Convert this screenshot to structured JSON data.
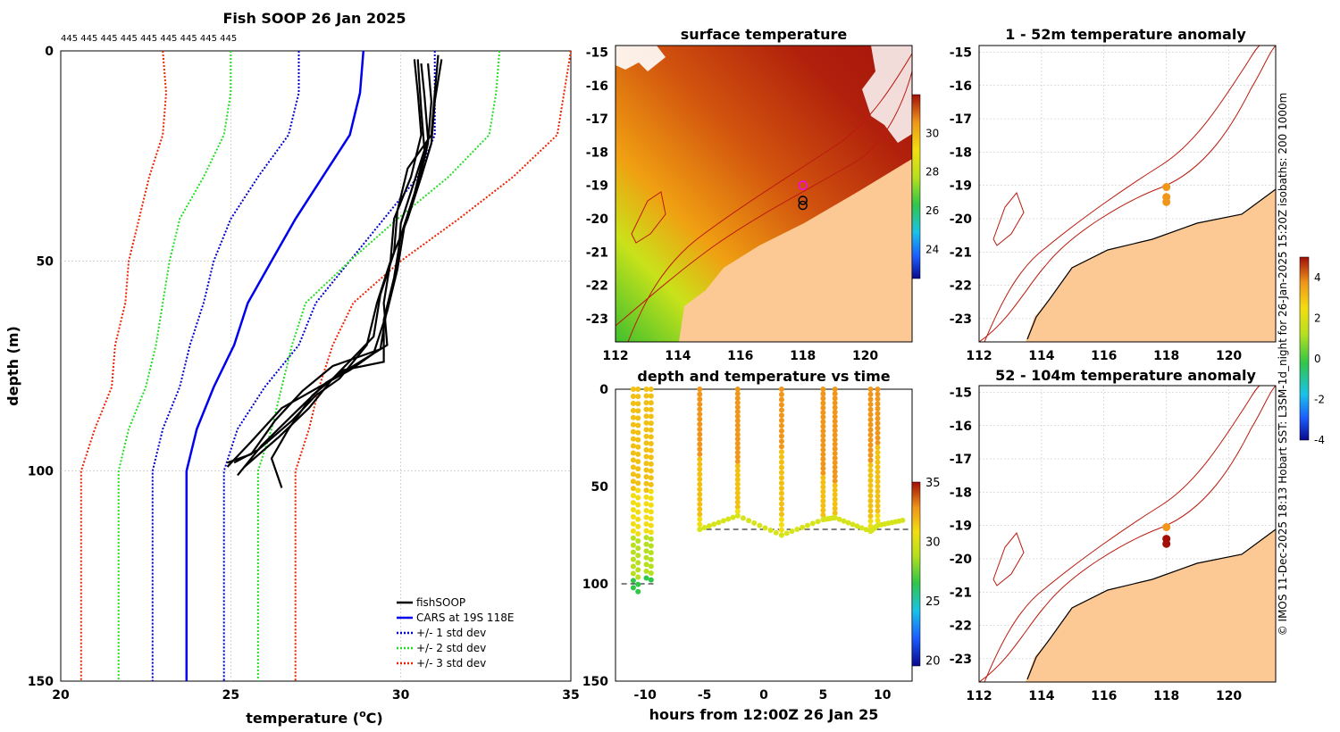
{
  "credit": "© IMOS 11-Dec-2025 18:13 Hobart SST: L3SM-1d_night for 26-Jan-2025 15:20Z isobaths: 200  1000m",
  "colors": {
    "fish": "#000000",
    "cars": "#0000ee",
    "std1": "#0000cc",
    "std2": "#22dd22",
    "std3": "#ee2200",
    "land": "#fcc995",
    "isobath": "#bb1a0e",
    "grid": "#bdbdbd"
  },
  "chart_data": [
    {
      "id": "profile",
      "type": "line",
      "title": "Fish SOOP 26 Jan 2025",
      "top_label": "445 445 445 445 445 445 445 445 445",
      "xlabel": "temperature (°C)",
      "xlabel_text": "temperature (",
      "xlabel_sup": "o",
      "xlabel_unit": "C)",
      "ylabel": "depth (m)",
      "xlim": [
        20,
        35
      ],
      "ylim": [
        150,
        0
      ],
      "xticks": [
        20,
        25,
        30,
        35
      ],
      "yticks": [
        0,
        50,
        100,
        150
      ],
      "legend": [
        "fishSOOP",
        "CARS at 19S 118E",
        "+/- 1 std dev",
        "+/- 2 std dev",
        "+/- 3 std dev"
      ],
      "series": [
        {
          "name": "CARS at 19S 118E",
          "style": "cars",
          "points": [
            [
              28.9,
              0
            ],
            [
              28.8,
              10
            ],
            [
              28.5,
              20
            ],
            [
              27.7,
              30
            ],
            [
              26.9,
              40
            ],
            [
              26.2,
              50
            ],
            [
              25.5,
              60
            ],
            [
              25.1,
              70
            ],
            [
              24.5,
              80
            ],
            [
              24.0,
              90
            ],
            [
              23.7,
              100
            ],
            [
              23.7,
              150
            ]
          ]
        },
        {
          "name": "-1 std",
          "style": "std1",
          "points": [
            [
              27.0,
              0
            ],
            [
              27.0,
              10
            ],
            [
              26.7,
              20
            ],
            [
              25.8,
              30
            ],
            [
              25.0,
              40
            ],
            [
              24.5,
              50
            ],
            [
              24.2,
              60
            ],
            [
              23.8,
              70
            ],
            [
              23.5,
              80
            ],
            [
              23.0,
              90
            ],
            [
              22.7,
              100
            ],
            [
              22.7,
              150
            ]
          ]
        },
        {
          "name": "+1 std",
          "style": "std1",
          "points": [
            [
              31.0,
              0
            ],
            [
              31.0,
              10
            ],
            [
              31.0,
              20
            ],
            [
              30.5,
              30
            ],
            [
              29.5,
              40
            ],
            [
              28.5,
              50
            ],
            [
              27.5,
              60
            ],
            [
              27.0,
              70
            ],
            [
              26.0,
              80
            ],
            [
              25.2,
              90
            ],
            [
              24.8,
              100
            ],
            [
              24.8,
              150
            ]
          ]
        },
        {
          "name": "-2 std",
          "style": "std2",
          "points": [
            [
              25.0,
              0
            ],
            [
              25.0,
              10
            ],
            [
              24.8,
              20
            ],
            [
              24.2,
              30
            ],
            [
              23.5,
              40
            ],
            [
              23.2,
              50
            ],
            [
              23.0,
              60
            ],
            [
              22.8,
              70
            ],
            [
              22.5,
              80
            ],
            [
              22.0,
              90
            ],
            [
              21.7,
              100
            ],
            [
              21.7,
              150
            ]
          ]
        },
        {
          "name": "+2 std",
          "style": "std2",
          "points": [
            [
              32.9,
              0
            ],
            [
              32.8,
              10
            ],
            [
              32.6,
              20
            ],
            [
              31.4,
              30
            ],
            [
              29.9,
              40
            ],
            [
              28.5,
              50
            ],
            [
              27.2,
              60
            ],
            [
              26.8,
              70
            ],
            [
              26.5,
              80
            ],
            [
              26.2,
              90
            ],
            [
              25.8,
              100
            ],
            [
              25.8,
              150
            ]
          ]
        },
        {
          "name": "-3 std",
          "style": "std3",
          "points": [
            [
              23.0,
              0
            ],
            [
              23.1,
              10
            ],
            [
              23.0,
              20
            ],
            [
              22.6,
              30
            ],
            [
              22.3,
              40
            ],
            [
              22.0,
              50
            ],
            [
              21.9,
              60
            ],
            [
              21.6,
              70
            ],
            [
              21.5,
              80
            ],
            [
              21.0,
              90
            ],
            [
              20.6,
              100
            ],
            [
              20.6,
              150
            ]
          ]
        },
        {
          "name": "+3 std",
          "style": "std3",
          "points": [
            [
              35.0,
              0
            ],
            [
              34.8,
              10
            ],
            [
              34.6,
              20
            ],
            [
              33.3,
              30
            ],
            [
              31.7,
              40
            ],
            [
              30.0,
              50
            ],
            [
              28.6,
              60
            ],
            [
              28.0,
              70
            ],
            [
              27.6,
              80
            ],
            [
              27.3,
              90
            ],
            [
              26.9,
              100
            ],
            [
              26.9,
              150
            ]
          ]
        },
        {
          "name": "fishSOOP cast 1",
          "style": "fish",
          "points": [
            [
              30.4,
              2
            ],
            [
              30.5,
              10
            ],
            [
              30.6,
              20
            ],
            [
              30.3,
              30
            ],
            [
              29.8,
              40
            ],
            [
              29.7,
              50
            ],
            [
              29.3,
              60
            ],
            [
              29.0,
              70
            ],
            [
              28.2,
              78
            ],
            [
              27.5,
              82
            ],
            [
              26.8,
              88
            ],
            [
              25.8,
              95
            ],
            [
              25.1,
              98
            ]
          ]
        },
        {
          "name": "fishSOOP cast 2",
          "style": "fish",
          "points": [
            [
              30.8,
              3
            ],
            [
              30.9,
              12
            ],
            [
              30.8,
              22
            ],
            [
              30.5,
              32
            ],
            [
              30.1,
              42
            ],
            [
              29.9,
              52
            ],
            [
              29.6,
              62
            ],
            [
              29.2,
              72
            ],
            [
              28.5,
              76
            ],
            [
              27.6,
              80
            ],
            [
              26.5,
              85
            ],
            [
              25.6,
              93
            ],
            [
              24.9,
              99
            ]
          ]
        },
        {
          "name": "fishSOOP cast 3",
          "style": "fish",
          "points": [
            [
              31.1,
              1
            ],
            [
              31.0,
              10
            ],
            [
              30.9,
              20
            ],
            [
              30.2,
              28
            ],
            [
              29.9,
              38
            ],
            [
              29.8,
              48
            ],
            [
              29.4,
              58
            ],
            [
              29.2,
              68
            ],
            [
              28.6,
              73
            ],
            [
              28.0,
              78
            ],
            [
              27.3,
              85
            ],
            [
              26.4,
              92
            ],
            [
              25.4,
              99
            ]
          ]
        },
        {
          "name": "fishSOOP cast 4",
          "style": "fish",
          "points": [
            [
              30.5,
              2
            ],
            [
              30.6,
              14
            ],
            [
              30.7,
              24
            ],
            [
              30.4,
              34
            ],
            [
              30.0,
              44
            ],
            [
              29.8,
              54
            ],
            [
              29.5,
              64
            ],
            [
              29.5,
              74
            ],
            [
              28.3,
              76
            ],
            [
              27.4,
              82
            ],
            [
              26.7,
              90
            ],
            [
              26.2,
              97
            ],
            [
              26.5,
              104
            ]
          ]
        },
        {
          "name": "fishSOOP cast 5",
          "style": "fish",
          "points": [
            [
              31.2,
              2
            ],
            [
              31.0,
              12
            ],
            [
              30.9,
              22
            ],
            [
              30.6,
              30
            ],
            [
              30.2,
              40
            ],
            [
              29.7,
              50
            ],
            [
              29.5,
              60
            ],
            [
              29.6,
              70
            ],
            [
              28.8,
              74
            ],
            [
              27.8,
              79
            ],
            [
              26.9,
              86
            ],
            [
              25.9,
              94
            ],
            [
              25.2,
              101
            ]
          ]
        },
        {
          "name": "fishSOOP cast 6",
          "style": "fish",
          "points": [
            [
              30.6,
              3
            ],
            [
              30.7,
              11
            ],
            [
              30.8,
              21
            ],
            [
              30.4,
              31
            ],
            [
              30.0,
              41
            ],
            [
              29.9,
              51
            ],
            [
              29.6,
              61
            ],
            [
              29.4,
              71
            ],
            [
              28.0,
              75
            ],
            [
              27.1,
              81
            ],
            [
              26.3,
              88
            ],
            [
              25.6,
              96
            ],
            [
              24.9,
              98
            ]
          ]
        }
      ]
    },
    {
      "id": "sst",
      "type": "heatmap",
      "title": "surface temperature",
      "xlim": [
        112,
        121.5
      ],
      "ylim": [
        -23.7,
        -14.8
      ],
      "xticks": [
        112,
        114,
        116,
        118,
        120
      ],
      "yticks": [
        -15,
        -16,
        -17,
        -18,
        -19,
        -20,
        -21,
        -22,
        -23
      ],
      "colorbar": {
        "range": [
          22.5,
          32
        ],
        "ticks": [
          24,
          26,
          28,
          30
        ]
      },
      "markers": [
        {
          "lon": 118.0,
          "lat": -19.0,
          "color": "#ff00ff"
        },
        {
          "lon": 118.0,
          "lat": -19.45,
          "color": "#000000"
        },
        {
          "lon": 118.0,
          "lat": -19.6,
          "color": "#000000"
        }
      ]
    },
    {
      "id": "anom1",
      "type": "scatter",
      "title": "1 - 52m temperature anomaly",
      "xlim": [
        112,
        121.5
      ],
      "ylim": [
        -23.7,
        -14.8
      ],
      "xticks": [
        112,
        114,
        116,
        118,
        120
      ],
      "yticks": [
        -15,
        -16,
        -17,
        -18,
        -19,
        -20,
        -21,
        -22,
        -23
      ],
      "points": [
        {
          "lon": 118.0,
          "lat": -19.05,
          "anom": 2.3
        },
        {
          "lon": 118.0,
          "lat": -19.35,
          "anom": 2.4
        },
        {
          "lon": 118.0,
          "lat": -19.5,
          "anom": 2.5
        }
      ]
    },
    {
      "id": "anom2",
      "type": "scatter",
      "title": "52 - 104m temperature anomaly",
      "xlim": [
        112,
        121.5
      ],
      "ylim": [
        -23.7,
        -14.8
      ],
      "xticks": [
        112,
        114,
        116,
        118,
        120
      ],
      "yticks": [
        -15,
        -16,
        -17,
        -18,
        -19,
        -20,
        -21,
        -22,
        -23
      ],
      "colorbar": {
        "range": [
          -4,
          5
        ],
        "ticks": [
          4,
          2,
          0,
          -2,
          -4
        ]
      },
      "points": [
        {
          "lon": 118.0,
          "lat": -19.05,
          "anom": 2.4
        },
        {
          "lon": 118.0,
          "lat": -19.4,
          "anom": 4.5
        },
        {
          "lon": 118.0,
          "lat": -19.55,
          "anom": 4.6
        }
      ]
    },
    {
      "id": "timeseries",
      "type": "scatter",
      "title": "depth and temperature vs time",
      "xlabel": "hours from 12:00Z 26 Jan 25",
      "xlim": [
        -12.5,
        12.5
      ],
      "ylim": [
        150,
        0
      ],
      "xticks": [
        -10,
        -5,
        0,
        5,
        10
      ],
      "yticks": [
        0,
        50,
        100,
        150
      ],
      "colorbar": {
        "range": [
          19.5,
          35
        ],
        "ticks": [
          20,
          25,
          30,
          35
        ]
      },
      "bottom_depth": 72,
      "casts": [
        {
          "t": -11.0,
          "depth": 102,
          "tsurf": 30.8,
          "tbot": 25.2
        },
        {
          "t": -10.6,
          "depth": 104,
          "tsurf": 30.6,
          "tbot": 25.0
        },
        {
          "t": -9.9,
          "depth": 97,
          "tsurf": 30.9,
          "tbot": 25.8
        },
        {
          "t": -9.5,
          "depth": 98,
          "tsurf": 30.7,
          "tbot": 26.0
        },
        {
          "t": -5.4,
          "depth": 72,
          "tsurf": 31.2,
          "tbot": 29.6
        },
        {
          "t": -2.2,
          "depth": 65,
          "tsurf": 31.3,
          "tbot": 29.8
        },
        {
          "t": 1.5,
          "depth": 75,
          "tsurf": 31.1,
          "tbot": 29.5
        },
        {
          "t": 5.0,
          "depth": 67,
          "tsurf": 31.4,
          "tbot": 29.9
        },
        {
          "t": 6.0,
          "depth": 66,
          "tsurf": 31.6,
          "tbot": 30.0
        },
        {
          "t": 9.0,
          "depth": 73,
          "tsurf": 31.2,
          "tbot": 29.7
        },
        {
          "t": 9.6,
          "depth": 70,
          "tsurf": 31.1,
          "tbot": 29.6
        }
      ]
    }
  ]
}
